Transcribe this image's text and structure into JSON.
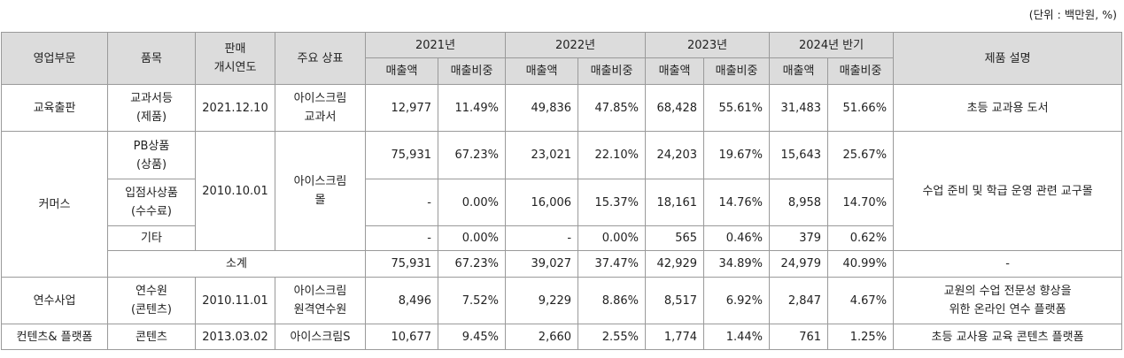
{
  "unit_note": "(단위 : 백만원, %)",
  "headers": {
    "segment": "영업부문",
    "item": "품목",
    "launch_line1": "판매",
    "launch_line2": "개시연도",
    "brand": "주요 상표",
    "years": [
      "2021년",
      "2022년",
      "2023년",
      "2024년 반기"
    ],
    "sales": "매출액",
    "ratio": "매출비중",
    "description": "제품 설명"
  },
  "rows": {
    "edu": {
      "segment": "교육출판",
      "item_line1": "교과서등",
      "item_line2": "(제품)",
      "launch": "2021.12.10",
      "brand_line1": "아이스크림",
      "brand_line2": "교과서",
      "vals": [
        "12,977",
        "11.49%",
        "49,836",
        "47.85%",
        "68,428",
        "55.61%",
        "31,483",
        "51.66%"
      ],
      "description": "초등 교과용 도서"
    },
    "commerce": {
      "segment": "커머스",
      "launch": "2010.10.01",
      "brand_line1": "아이스크림",
      "brand_line2": "몰",
      "description": "수업 준비 및 학급 운영 관련 교구몰",
      "pb": {
        "item_line1": "PB상품",
        "item_line2": "(상품)",
        "vals": [
          "75,931",
          "67.23%",
          "23,021",
          "22.10%",
          "24,203",
          "19.67%",
          "15,643",
          "25.67%"
        ]
      },
      "ip": {
        "item_line1": "입점사상품",
        "item_line2": "(수수료)",
        "vals": [
          "-",
          "0.00%",
          "16,006",
          "15.37%",
          "18,161",
          "14.76%",
          "8,958",
          "14.70%"
        ]
      },
      "etc": {
        "item": "기타",
        "vals": [
          "-",
          "0.00%",
          "-",
          "0.00%",
          "565",
          "0.46%",
          "379",
          "0.62%"
        ]
      },
      "subtotal": {
        "label": "소계",
        "vals": [
          "75,931",
          "67.23%",
          "39,027",
          "37.47%",
          "42,929",
          "34.89%",
          "24,979",
          "40.99%"
        ],
        "description": "-"
      }
    },
    "train": {
      "segment": "연수사업",
      "item_line1": "연수원",
      "item_line2": "(콘텐츠)",
      "launch": "2010.11.01",
      "brand_line1": "아이스크림",
      "brand_line2": "원격연수원",
      "vals": [
        "8,496",
        "7.52%",
        "9,229",
        "8.86%",
        "8,517",
        "6.92%",
        "2,847",
        "4.67%"
      ],
      "description_line1": "교원의 수업 전문성 향상을",
      "description_line2": "위한 온라인 연수 플랫폼"
    },
    "content": {
      "segment": "컨텐츠& 플랫폼",
      "item": "콘텐츠",
      "launch": "2013.03.02",
      "brand": "아이스크림S",
      "vals": [
        "10,677",
        "9.45%",
        "2,660",
        "2.55%",
        "1,774",
        "1.44%",
        "761",
        "1.25%"
      ],
      "description": "초등 교사용 교육 콘텐츠 플랫폼"
    }
  }
}
